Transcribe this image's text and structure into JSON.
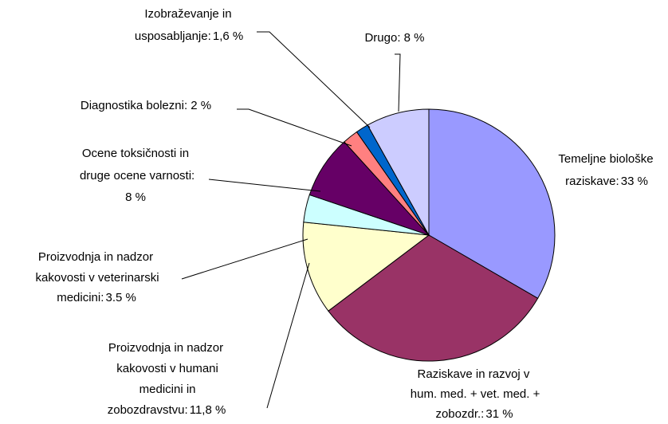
{
  "chart_data": {
    "type": "pie",
    "categories": [
      "Temeljne biološke raziskave:",
      "Raziskave in razvoj v hum. med. + vet. med. + zobozdr.:",
      "Proizvodnja in nadzor kakovosti v humani medicini in zobozdravstvu:",
      "Proizvodnja in nadzor kakovosti v veterinarski medicini:",
      "Ocene toksičnosti in druge ocene varnosti:",
      "Diagnostika bolezni:",
      "Izobraževanje in usposabljanje:",
      "Drugo:"
    ],
    "values": [
      33,
      31,
      11.8,
      3.5,
      8,
      2,
      1.6,
      8
    ],
    "value_labels": [
      "33 %",
      "31 %",
      "11,8 %",
      "3.5 %",
      "8 %",
      "2 %",
      "1,6 %",
      "8 %"
    ],
    "colors": [
      "#9999ff",
      "#993366",
      "#ffffcc",
      "#ccffff",
      "#660066",
      "#ff8080",
      "#0066cc",
      "#ccccff"
    ]
  }
}
